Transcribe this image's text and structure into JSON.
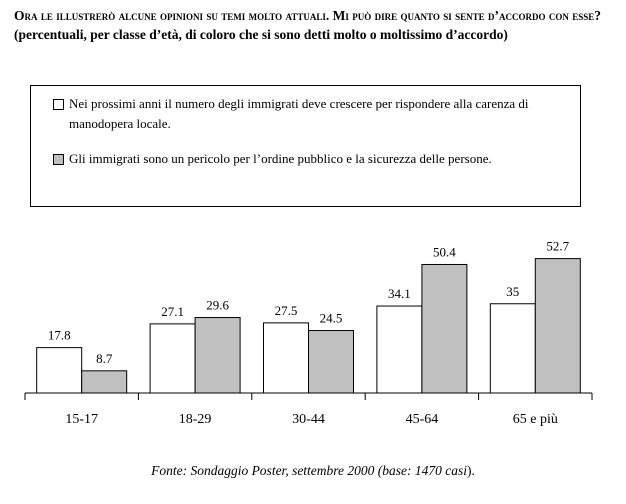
{
  "title": {
    "line1": "Ora le illustrerò alcune opinioni su temi molto attuali. Mi può dire quanto si sente d’accordo con esse?",
    "line2": "(percentuali, per classe d’età, di coloro che si sono detti molto o moltissimo d’accordo)"
  },
  "legend": {
    "items": [
      {
        "label": "Nei prossimi anni il numero degli immigrati deve crescere per rispondere alla carenza di manodopera locale.",
        "color": "#ffffff"
      },
      {
        "label": "Gli immigrati sono un pericolo per l’ordine pubblico e la sicurezza delle persone.",
        "color": "#c0c0c0"
      }
    ]
  },
  "chart_data": {
    "type": "bar",
    "categories": [
      "15-17",
      "18-29",
      "30-44",
      "45-64",
      "65 e più"
    ],
    "series": [
      {
        "values": [
          17.8,
          27.1,
          27.5,
          34.1,
          35
        ],
        "color": "#ffffff"
      },
      {
        "values": [
          8.7,
          29.6,
          24.5,
          50.4,
          52.7
        ],
        "color": "#c0c0c0"
      }
    ],
    "value_labels": [
      [
        "17.8",
        "27.1",
        "27.5",
        "34.1",
        "35"
      ],
      [
        "8.7",
        "29.6",
        "24.5",
        "50.4",
        "52.7"
      ]
    ],
    "ylim": [
      0,
      60
    ],
    "grid": false,
    "legend_position": "top"
  },
  "source": {
    "text": "Fonte: Sondaggio Poster, settembre 2000 (base: 1470 casi",
    "tail": ")."
  }
}
